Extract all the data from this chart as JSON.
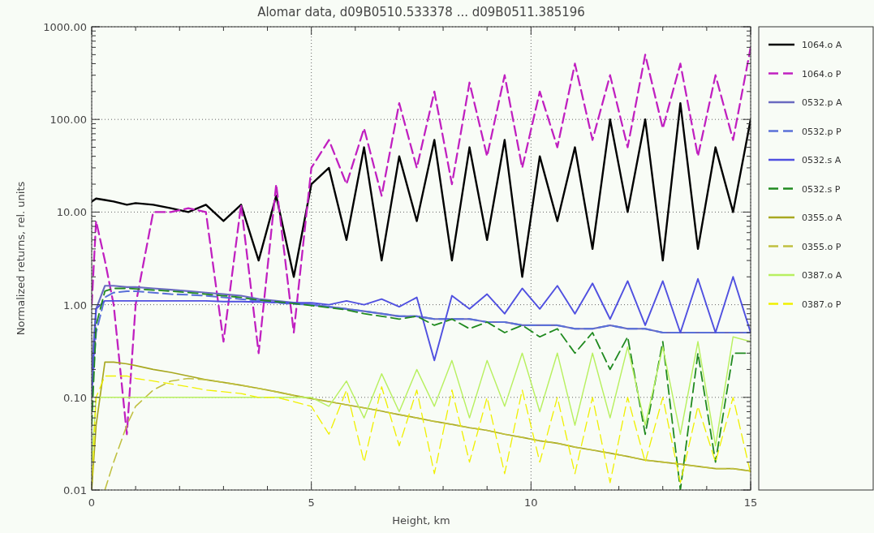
{
  "chart_data": {
    "type": "line",
    "title": "Alomar data, d09B0510.533378 ... d09B0511.385196",
    "xlabel": "Height, km",
    "ylabel": "Normalized returns, rel. units",
    "log": "y",
    "grid": true,
    "legend": "right",
    "x": [
      0,
      0.1,
      0.3,
      0.5,
      0.8,
      1,
      1.4,
      1.8,
      2.2,
      2.6,
      3,
      3.4,
      3.8,
      4.2,
      4.6,
      5,
      5.4,
      5.8,
      6.2,
      6.6,
      7,
      7.4,
      7.8,
      8.2,
      8.6,
      9,
      9.4,
      9.8,
      10.2,
      10.6,
      11,
      11.4,
      11.8,
      12.2,
      12.6,
      13,
      13.4,
      13.8,
      14.2,
      14.6,
      15
    ],
    "xlim": [
      0,
      15
    ],
    "xticks": [
      0,
      {
        "value": 1,
        "label": null
      },
      {
        "value": 2,
        "label": null
      },
      {
        "value": 3,
        "label": null
      },
      {
        "value": 4,
        "label": null
      },
      5,
      {
        "value": 6,
        "label": null
      },
      {
        "value": 7,
        "label": null
      },
      {
        "value": 8,
        "label": null
      },
      {
        "value": 9,
        "label": null
      },
      10,
      {
        "value": 11,
        "label": null
      },
      {
        "value": 12,
        "label": null
      },
      {
        "value": 13,
        "label": null
      },
      {
        "value": 14,
        "label": null
      },
      15
    ],
    "ylim": [
      0.01,
      1000
    ],
    "yticks": [
      {
        "value": 0.01,
        "label": "0.01"
      },
      {
        "value": 0.02,
        "label": null
      },
      {
        "value": 0.03,
        "label": null
      },
      {
        "value": 0.04,
        "label": null
      },
      {
        "value": 0.05,
        "label": null
      },
      {
        "value": 0.06,
        "label": null
      },
      {
        "value": 0.07,
        "label": null
      },
      {
        "value": 0.08,
        "label": null
      },
      {
        "value": 0.09,
        "label": null
      },
      {
        "value": 0.1,
        "label": "0.10"
      },
      {
        "value": 0.2,
        "label": null
      },
      {
        "value": 0.3,
        "label": null
      },
      {
        "value": 0.4,
        "label": null
      },
      {
        "value": 0.5,
        "label": null
      },
      {
        "value": 0.6,
        "label": null
      },
      {
        "value": 0.7,
        "label": null
      },
      {
        "value": 0.8,
        "label": null
      },
      {
        "value": 0.9,
        "label": null
      },
      {
        "value": 1,
        "label": "1.00"
      },
      {
        "value": 2,
        "label": null
      },
      {
        "value": 3,
        "label": null
      },
      {
        "value": 4,
        "label": null
      },
      {
        "value": 5,
        "label": null
      },
      {
        "value": 6,
        "label": null
      },
      {
        "value": 7,
        "label": null
      },
      {
        "value": 8,
        "label": null
      },
      {
        "value": 9,
        "label": null
      },
      {
        "value": 10,
        "label": "10.00"
      },
      {
        "value": 20,
        "label": null
      },
      {
        "value": 30,
        "label": null
      },
      {
        "value": 40,
        "label": null
      },
      {
        "value": 50,
        "label": null
      },
      {
        "value": 60,
        "label": null
      },
      {
        "value": 70,
        "label": null
      },
      {
        "value": 80,
        "label": null
      },
      {
        "value": 90,
        "label": null
      },
      {
        "value": 100,
        "label": "100.00"
      },
      {
        "value": 200,
        "label": null
      },
      {
        "value": 300,
        "label": null
      },
      {
        "value": 400,
        "label": null
      },
      {
        "value": 500,
        "label": null
      },
      {
        "value": 600,
        "label": null
      },
      {
        "value": 700,
        "label": null
      },
      {
        "value": 800,
        "label": null
      },
      {
        "value": 900,
        "label": null
      },
      {
        "value": 1000,
        "label": "1000.00"
      }
    ],
    "series": [
      {
        "name": "1064.o A",
        "color": "#000000",
        "line_style": "solid",
        "values": [
          13,
          14,
          13.5,
          13,
          12,
          12.5,
          12,
          11,
          10,
          12,
          8,
          12,
          3,
          15,
          2,
          20,
          30,
          5,
          50,
          3,
          40,
          8,
          60,
          3,
          50,
          5,
          60,
          2,
          40,
          8,
          50,
          4,
          100,
          10,
          100,
          3,
          150,
          4,
          50,
          10,
          100
        ]
      },
      {
        "name": "1064.o P",
        "color": "#c020c0",
        "line_style": "dashed",
        "values": [
          1,
          8,
          3,
          1,
          0.04,
          1,
          10,
          10,
          11,
          10,
          0.4,
          12,
          0.3,
          20,
          0.5,
          30,
          60,
          20,
          80,
          15,
          150,
          30,
          200,
          20,
          250,
          40,
          300,
          30,
          200,
          50,
          400,
          60,
          300,
          50,
          500,
          80,
          400,
          40,
          300,
          60,
          600
        ]
      },
      {
        "name": "0532.p A",
        "color": "#6a6ac0",
        "line_style": "solid",
        "values": [
          0.2,
          0.9,
          1.6,
          1.6,
          1.55,
          1.55,
          1.5,
          1.45,
          1.4,
          1.35,
          1.3,
          1.25,
          1.15,
          1.1,
          1.05,
          1,
          0.95,
          0.9,
          0.85,
          0.8,
          0.75,
          0.75,
          0.7,
          0.7,
          0.7,
          0.65,
          0.65,
          0.6,
          0.6,
          0.6,
          0.55,
          0.55,
          0.6,
          0.55,
          0.55,
          0.5,
          0.5,
          0.5,
          0.5,
          0.5,
          0.5
        ]
      },
      {
        "name": "0532.p P",
        "color": "#5a70d8",
        "line_style": "dashed",
        "values": [
          0.1,
          0.5,
          1.2,
          1.35,
          1.4,
          1.4,
          1.35,
          1.3,
          1.28,
          1.25,
          1.2,
          1.15,
          1.1,
          1.05,
          1.02,
          1,
          0.95,
          0.9,
          0.85,
          0.8,
          0.75,
          0.75,
          0.7,
          0.7,
          0.7,
          0.65,
          0.65,
          0.6,
          0.6,
          0.6,
          0.55,
          0.55,
          0.6,
          0.55,
          0.55,
          0.5,
          0.5,
          0.5,
          0.5,
          0.5,
          0.5
        ]
      },
      {
        "name": "0532.s A",
        "color": "#5050e0",
        "line_style": "solid",
        "values": [
          0.1,
          0.9,
          1.1,
          1.1,
          1.1,
          1.1,
          1.1,
          1.1,
          1.1,
          1.1,
          1.08,
          1.08,
          1.07,
          1.06,
          1.05,
          1.05,
          1,
          1.1,
          1,
          1.15,
          0.95,
          1.2,
          0.25,
          1.25,
          0.9,
          1.3,
          0.8,
          1.5,
          0.9,
          1.6,
          0.8,
          1.7,
          0.7,
          1.8,
          0.6,
          1.8,
          0.5,
          1.9,
          0.5,
          2,
          0.5
        ]
      },
      {
        "name": "0532.s P",
        "color": "#208a20",
        "line_style": "dashed",
        "values": [
          0.05,
          0.6,
          1.4,
          1.5,
          1.5,
          1.48,
          1.44,
          1.4,
          1.35,
          1.3,
          1.25,
          1.2,
          1.12,
          1.08,
          1.03,
          0.98,
          0.93,
          0.88,
          0.8,
          0.75,
          0.7,
          0.75,
          0.6,
          0.7,
          0.55,
          0.65,
          0.5,
          0.6,
          0.45,
          0.55,
          0.3,
          0.5,
          0.2,
          0.45,
          0.04,
          0.4,
          0.01,
          0.3,
          0.02,
          0.3,
          0.3
        ]
      },
      {
        "name": "0355.o A",
        "color": "#a8a820",
        "line_style": "solid",
        "values": [
          0.01,
          0.05,
          0.24,
          0.24,
          0.23,
          0.22,
          0.2,
          0.186,
          0.17,
          0.155,
          0.145,
          0.135,
          0.125,
          0.115,
          0.105,
          0.097,
          0.09,
          0.083,
          0.077,
          0.071,
          0.065,
          0.06,
          0.055,
          0.051,
          0.047,
          0.044,
          0.04,
          0.037,
          0.034,
          0.032,
          0.029,
          0.027,
          0.025,
          0.023,
          0.021,
          0.02,
          0.019,
          0.018,
          0.017,
          0.017,
          0.016
        ]
      },
      {
        "name": "0355.o P",
        "color": "#c0c040",
        "line_style": "dashed",
        "values": [
          null,
          null,
          0.01,
          0.02,
          0.05,
          0.08,
          0.12,
          0.15,
          0.16,
          0.155,
          0.145,
          0.135,
          0.125,
          0.115,
          0.105,
          0.097,
          0.09,
          0.083,
          0.077,
          0.071,
          0.065,
          0.06,
          0.055,
          0.051,
          0.047,
          0.044,
          0.04,
          0.037,
          0.034,
          0.032,
          0.029,
          0.027,
          0.025,
          0.023,
          0.021,
          0.02,
          0.019,
          0.018,
          0.017,
          0.017,
          0.016
        ]
      },
      {
        "name": "0387.o A",
        "color": "#b8f060",
        "line_style": "solid",
        "values": [
          0.02,
          0.1,
          0.1,
          0.1,
          0.1,
          0.1,
          0.1,
          0.1,
          0.1,
          0.1,
          0.1,
          0.1,
          0.1,
          0.1,
          0.1,
          0.1,
          0.08,
          0.15,
          0.06,
          0.18,
          0.07,
          0.2,
          0.08,
          0.25,
          0.06,
          0.25,
          0.08,
          0.3,
          0.07,
          0.3,
          0.05,
          0.3,
          0.06,
          0.35,
          0.05,
          0.35,
          0.04,
          0.4,
          0.03,
          0.45,
          0.4
        ]
      },
      {
        "name": "0387.o P",
        "color": "#f0f000",
        "line_style": "dashed",
        "values": [
          0.01,
          0.1,
          0.17,
          0.17,
          0.17,
          0.16,
          0.15,
          0.14,
          0.13,
          0.12,
          0.115,
          0.11,
          0.1,
          0.1,
          0.09,
          0.08,
          0.04,
          0.12,
          0.02,
          0.13,
          0.03,
          0.12,
          0.015,
          0.12,
          0.02,
          0.1,
          0.015,
          0.12,
          0.02,
          0.1,
          0.015,
          0.1,
          0.012,
          0.1,
          0.02,
          0.1,
          0.012,
          0.08,
          0.02,
          0.1,
          0.015
        ]
      }
    ]
  }
}
